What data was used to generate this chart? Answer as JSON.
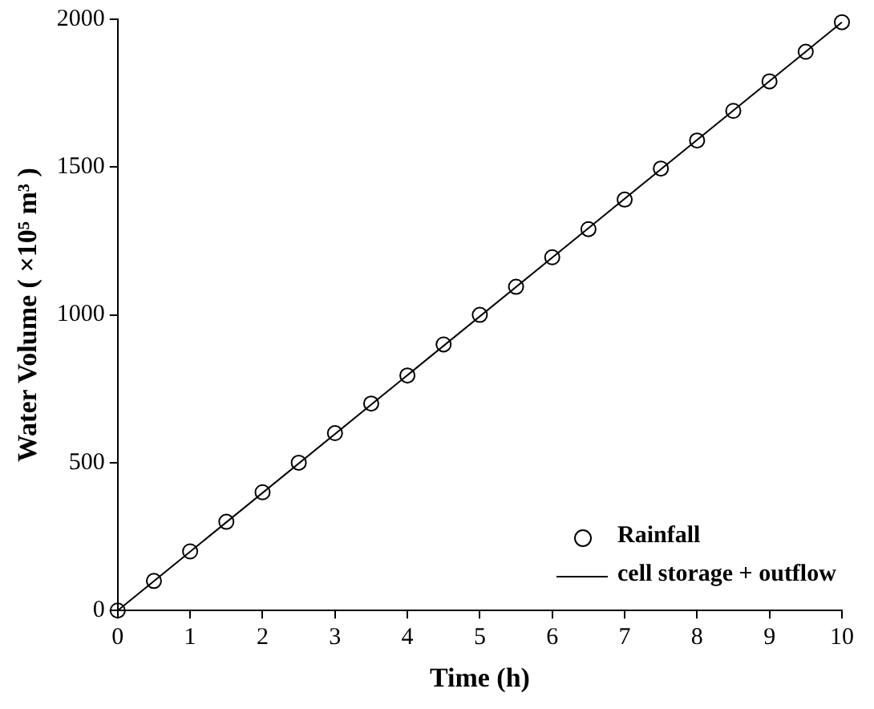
{
  "chart_data": {
    "type": "scatter",
    "xlabel": "Time (h)",
    "ylabel": "Water Volume ( ×10⁵ m³ )",
    "xlim": [
      0,
      10
    ],
    "ylim": [
      0,
      2000
    ],
    "xticks": [
      0,
      1,
      2,
      3,
      4,
      5,
      6,
      7,
      8,
      9,
      10
    ],
    "yticks": [
      0,
      500,
      1000,
      1500,
      2000
    ],
    "grid": false,
    "legend": "bottom right",
    "series": [
      {
        "name": "Rainfall",
        "marker": "circle",
        "color": "#000000",
        "x": [
          0,
          0.5,
          1,
          1.5,
          2,
          2.5,
          3,
          3.5,
          4,
          4.5,
          5,
          5.5,
          6,
          6.5,
          7,
          7.5,
          8,
          8.5,
          9,
          9.5,
          10
        ],
        "values": [
          0,
          100,
          200,
          300,
          400,
          500,
          600,
          700,
          795,
          900,
          1000,
          1095,
          1195,
          1290,
          1390,
          1495,
          1590,
          1690,
          1790,
          1890,
          1990
        ]
      },
      {
        "name": "cell storage + outflow",
        "type": "line",
        "marker": "none",
        "line_style": "solid",
        "color": "#000000",
        "x": [
          0,
          10
        ],
        "values": [
          0,
          1990
        ]
      }
    ]
  }
}
